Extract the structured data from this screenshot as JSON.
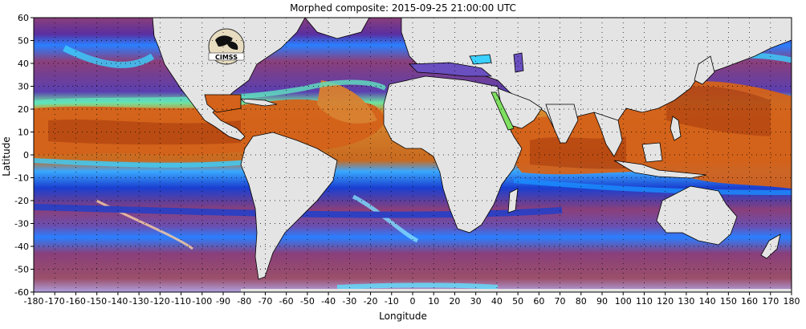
{
  "title": "Morphed composite: 2015-09-25 21:00:00 UTC",
  "xlabel": "Longitude",
  "ylabel": "Latitude",
  "logo_text": "CIMSS",
  "x_ticks": [
    "-180",
    "-170",
    "-160",
    "-150",
    "-140",
    "-130",
    "-120",
    "-110",
    "-100",
    "-90",
    "-80",
    "-70",
    "-60",
    "-50",
    "-40",
    "-30",
    "-20",
    "-10",
    "0",
    "10",
    "20",
    "30",
    "40",
    "50",
    "60",
    "70",
    "80",
    "90",
    "100",
    "110",
    "120",
    "130",
    "140",
    "150",
    "160",
    "170",
    "180"
  ],
  "y_ticks": [
    "60",
    "50",
    "40",
    "30",
    "20",
    "10",
    "0",
    "-10",
    "-20",
    "-30",
    "-40",
    "-50",
    "-60"
  ],
  "colors": {
    "ocean_low": "#8a3f7a",
    "ocean_mid": "#2a7fff",
    "moist": "#d65a10",
    "land": "#e4e4e4",
    "grid": "#000000"
  }
}
